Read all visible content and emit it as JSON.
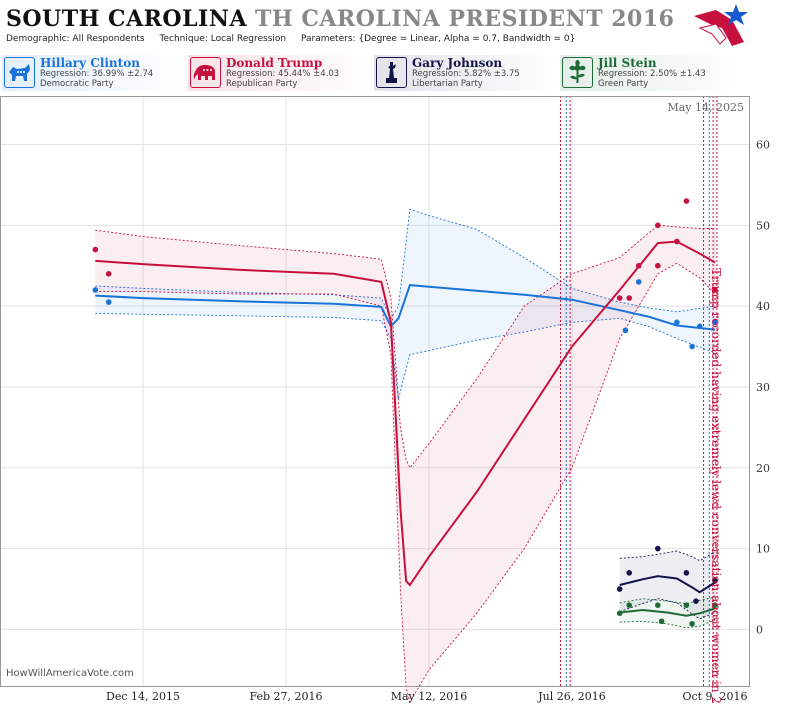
{
  "header": {
    "state": "SOUTH CAROLINA",
    "race": "TH CAROLINA PRESIDENT 2016",
    "demographic": "Demographic: All Respondents",
    "technique": "Technique: Local Regression",
    "parameters": "Parameters: {Degree = Linear, Alpha = 0.7, Bandwidth = 0}"
  },
  "candidates": [
    {
      "name": "Hillary Clinton",
      "regression": "Regression: 36.99% ±2.74",
      "party": "Democratic Party",
      "color": "#1a73d9",
      "icon": "donkey-icon"
    },
    {
      "name": "Donald Trump",
      "regression": "Regression: 45.44% ±4.03",
      "party": "Republican Party",
      "color": "#c8103e",
      "icon": "elephant-icon"
    },
    {
      "name": "Gary Johnson",
      "regression": "Regression: 5.82% ±3.75",
      "party": "Libertarian Party",
      "color": "#14124a",
      "icon": "liberty-icon"
    },
    {
      "name": "Jill Stein",
      "regression": "Regression: 2.50% ±1.43",
      "party": "Green Party",
      "color": "#1e6b3a",
      "icon": "flower-icon"
    }
  ],
  "watermark": "HowWillAmericaVote.com",
  "date_stamp": "May 14, 2025",
  "chart_data": {
    "type": "line",
    "x_tick_labels": [
      "Dec 14, 2015",
      "Feb 27, 2016",
      "May 12, 2016",
      "Jul 26, 2016",
      "Oct 9, 2016"
    ],
    "x_tick_days": [
      0,
      75,
      150,
      225,
      300
    ],
    "ylim": [
      -7,
      66
    ],
    "y_ticks": [
      0,
      10,
      20,
      30,
      40,
      50,
      60
    ],
    "annotation": "Trump recorded having extremely lewd conversation about women in 2005",
    "event_lines": [
      {
        "day": 219,
        "color": "#c8103e"
      },
      {
        "day": 222,
        "color": "#1a73d9"
      },
      {
        "day": 224,
        "color": "#c8103e"
      },
      {
        "day": 294,
        "color": "#c8103e"
      },
      {
        "day": 297,
        "color": "#1a73d9"
      },
      {
        "day": 299,
        "color": "#c8103e"
      },
      {
        "day": 301,
        "color": "#c8103e"
      }
    ],
    "series": [
      {
        "name": "Hillary Clinton",
        "color": "#1a73d9",
        "x": [
          -25,
          0,
          50,
          100,
          125,
          130,
          134,
          140,
          150,
          175,
          200,
          225,
          250,
          265,
          280,
          300
        ],
        "y": [
          41.3,
          41,
          40.6,
          40.3,
          39.9,
          37.5,
          38.5,
          42.6,
          42.4,
          41.9,
          41.4,
          40.8,
          39.5,
          38.7,
          37.6,
          37.1
        ],
        "upper": [
          42.5,
          42.2,
          41.7,
          41.4,
          41,
          38.5,
          40,
          52,
          51.2,
          49.5,
          46,
          42.2,
          40.5,
          39.8,
          39.3,
          40
        ],
        "lower": [
          39.1,
          39,
          38.8,
          38.6,
          38.2,
          36,
          28.5,
          34,
          34.5,
          35.8,
          36.8,
          38,
          38.5,
          37.5,
          36,
          34.2
        ],
        "points": [
          [
            -25,
            42
          ],
          [
            -18,
            40.5
          ],
          [
            260,
            43
          ],
          [
            253,
            37
          ],
          [
            280,
            38
          ],
          [
            288,
            35
          ],
          [
            292,
            37.5
          ],
          [
            300,
            38
          ]
        ]
      },
      {
        "name": "Donald Trump",
        "color": "#c8103e",
        "x": [
          -25,
          0,
          50,
          100,
          125,
          130,
          135,
          138,
          140,
          150,
          175,
          200,
          225,
          250,
          270,
          280,
          292,
          300
        ],
        "y": [
          45.6,
          45.2,
          44.5,
          44,
          43,
          38,
          15,
          6,
          5.5,
          9,
          17,
          26,
          35,
          42,
          47.8,
          48,
          46.5,
          45.4
        ],
        "upper": [
          49.4,
          48.6,
          47.5,
          46.5,
          45.8,
          41,
          25,
          21,
          20,
          23,
          31,
          40,
          44,
          46,
          50,
          49.8,
          49.6,
          49.6
        ],
        "lower": [
          41.8,
          41.8,
          41.5,
          41.5,
          40,
          34,
          5,
          -7.2,
          -9,
          -5,
          2,
          10,
          20,
          36,
          44,
          45.3,
          43.5,
          41.5
        ]
      },
      {
        "name": "Gary Johnson",
        "color": "#14124a",
        "x": [
          250,
          262,
          270,
          280,
          288,
          292,
          300
        ],
        "y": [
          5.5,
          6.2,
          6.6,
          6.3,
          5.2,
          4.6,
          5.8
        ],
        "upper": [
          8.8,
          9,
          9.3,
          9.7,
          9,
          8.5,
          9.6
        ],
        "lower": [
          2.2,
          3.2,
          3.8,
          3.3,
          1.9,
          1.3,
          2.1
        ],
        "points": [
          [
            250,
            5
          ],
          [
            255,
            7
          ],
          [
            270,
            10
          ],
          [
            285,
            7
          ],
          [
            290,
            3.5
          ],
          [
            300,
            6
          ]
        ]
      },
      {
        "name": "Jill Stein",
        "color": "#1e6b3a",
        "x": [
          250,
          262,
          275,
          285,
          292,
          300
        ],
        "y": [
          2.1,
          2.4,
          2.1,
          1.7,
          2,
          2.6
        ],
        "upper": [
          3.3,
          3.8,
          3.5,
          3.2,
          3.6,
          4
        ],
        "lower": [
          0.9,
          1,
          0.7,
          0.2,
          0.4,
          1.2
        ],
        "points": [
          [
            250,
            2
          ],
          [
            255,
            3
          ],
          [
            270,
            3
          ],
          [
            272,
            1
          ],
          [
            285,
            3
          ],
          [
            288,
            0.7
          ],
          [
            300,
            3
          ]
        ]
      }
    ],
    "trump_points": [
      [
        -25,
        47
      ],
      [
        -18,
        44
      ],
      [
        250,
        41
      ],
      [
        255,
        41
      ],
      [
        260,
        45
      ],
      [
        270,
        45
      ],
      [
        270,
        50
      ],
      [
        280,
        48
      ],
      [
        285,
        53
      ],
      [
        300,
        42
      ]
    ]
  }
}
